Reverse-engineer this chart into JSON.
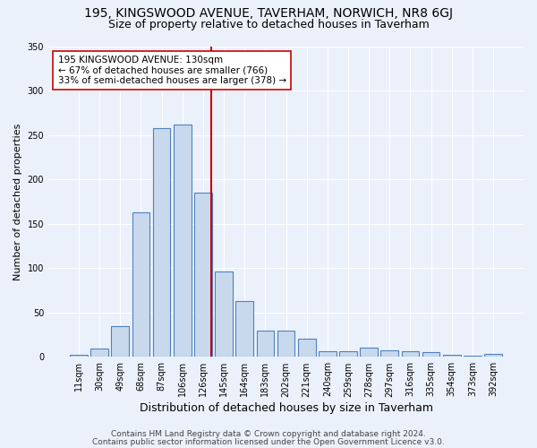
{
  "title1": "195, KINGSWOOD AVENUE, TAVERHAM, NORWICH, NR8 6GJ",
  "title2": "Size of property relative to detached houses in Taverham",
  "xlabel": "Distribution of detached houses by size in Taverham",
  "ylabel": "Number of detached properties",
  "bin_labels": [
    "11sqm",
    "30sqm",
    "49sqm",
    "68sqm",
    "87sqm",
    "106sqm",
    "126sqm",
    "145sqm",
    "164sqm",
    "183sqm",
    "202sqm",
    "221sqm",
    "240sqm",
    "259sqm",
    "278sqm",
    "297sqm",
    "316sqm",
    "335sqm",
    "354sqm",
    "373sqm",
    "392sqm"
  ],
  "bar_values": [
    2,
    9,
    35,
    163,
    258,
    262,
    185,
    96,
    63,
    30,
    30,
    21,
    6,
    6,
    10,
    7,
    6,
    5,
    2,
    1,
    3
  ],
  "bar_color": "#c9d9ed",
  "bar_edge_color": "#4f81bd",
  "vline_color": "#cc0000",
  "annotation_text": "195 KINGSWOOD AVENUE: 130sqm\n← 67% of detached houses are smaller (766)\n33% of semi-detached houses are larger (378) →",
  "annotation_box_color": "#ffffff",
  "annotation_box_edge": "#cc0000",
  "footer1": "Contains HM Land Registry data © Crown copyright and database right 2024.",
  "footer2": "Contains public sector information licensed under the Open Government Licence v3.0.",
  "background_color": "#eaf1fb",
  "plot_bg_color": "#eaf1fb",
  "ylim": [
    0,
    350
  ],
  "title1_fontsize": 10,
  "title2_fontsize": 9,
  "xlabel_fontsize": 9,
  "ylabel_fontsize": 8,
  "tick_fontsize": 7,
  "annot_fontsize": 7.5,
  "footer_fontsize": 6.5
}
